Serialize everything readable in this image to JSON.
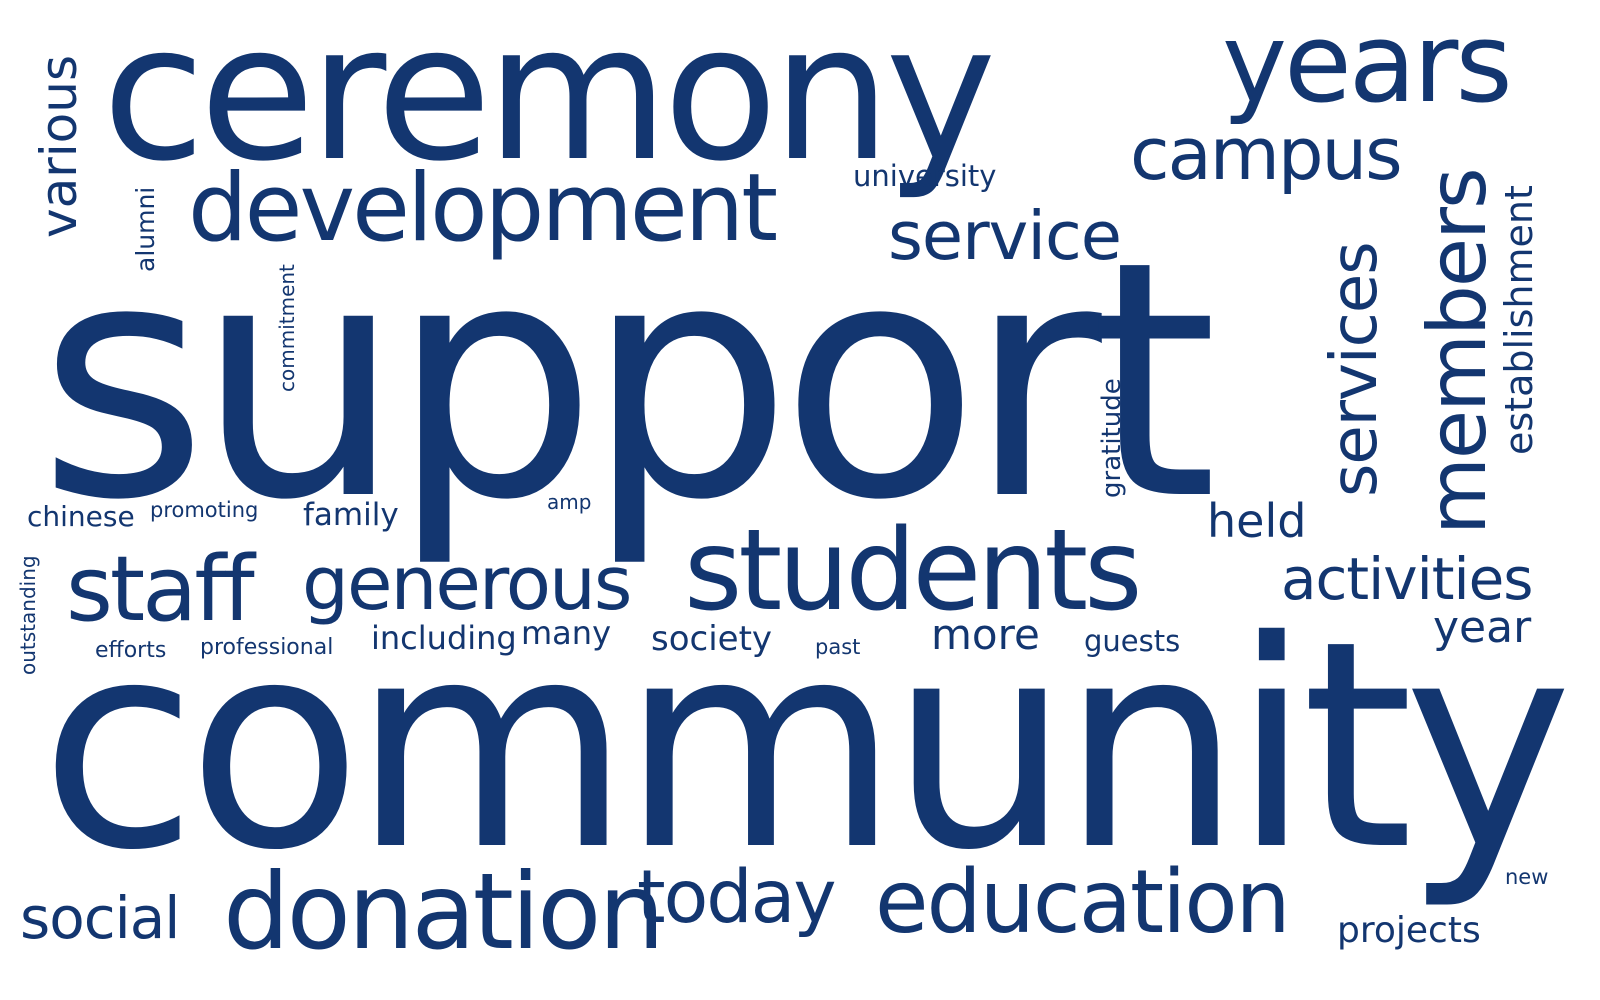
{
  "colors": {
    "word": "#133670",
    "background": "#ffffff"
  },
  "words": [
    {
      "id": "ceremony",
      "text": "ceremony"
    },
    {
      "id": "years",
      "text": "years"
    },
    {
      "id": "various",
      "text": "various"
    },
    {
      "id": "development",
      "text": "development"
    },
    {
      "id": "campus",
      "text": "campus"
    },
    {
      "id": "university",
      "text": "university"
    },
    {
      "id": "service",
      "text": "service"
    },
    {
      "id": "members",
      "text": "members"
    },
    {
      "id": "establishment",
      "text": "establishment"
    },
    {
      "id": "alumni",
      "text": "alumni"
    },
    {
      "id": "commitment",
      "text": "commitment"
    },
    {
      "id": "support",
      "text": "support"
    },
    {
      "id": "services",
      "text": "services"
    },
    {
      "id": "gratitude",
      "text": "gratitude"
    },
    {
      "id": "chinese",
      "text": "chinese"
    },
    {
      "id": "promoting",
      "text": "promoting"
    },
    {
      "id": "family",
      "text": "family"
    },
    {
      "id": "amp",
      "text": "amp"
    },
    {
      "id": "held",
      "text": "held"
    },
    {
      "id": "staff",
      "text": "staff"
    },
    {
      "id": "generous",
      "text": "generous"
    },
    {
      "id": "students",
      "text": "students"
    },
    {
      "id": "activities",
      "text": "activities"
    },
    {
      "id": "outstanding",
      "text": "outstanding"
    },
    {
      "id": "efforts",
      "text": "efforts"
    },
    {
      "id": "professional",
      "text": "professional"
    },
    {
      "id": "including",
      "text": "including"
    },
    {
      "id": "many",
      "text": "many"
    },
    {
      "id": "society",
      "text": "society"
    },
    {
      "id": "past",
      "text": "past"
    },
    {
      "id": "more",
      "text": "more"
    },
    {
      "id": "guests",
      "text": "guests"
    },
    {
      "id": "year",
      "text": "year"
    },
    {
      "id": "community",
      "text": "community"
    },
    {
      "id": "new",
      "text": "new"
    },
    {
      "id": "social",
      "text": "social"
    },
    {
      "id": "donation",
      "text": "donation"
    },
    {
      "id": "today",
      "text": "today"
    },
    {
      "id": "education",
      "text": "education"
    },
    {
      "id": "projects",
      "text": "projects"
    }
  ]
}
